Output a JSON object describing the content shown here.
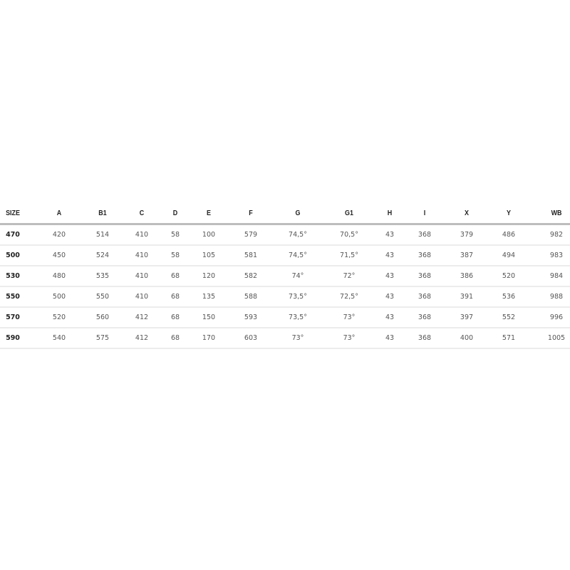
{
  "table": {
    "headers": [
      "SIZE",
      "A",
      "B1",
      "C",
      "D",
      "E",
      "F",
      "G",
      "G1",
      "H",
      "I",
      "X",
      "Y",
      "WB"
    ],
    "rows": [
      [
        "470",
        "420",
        "514",
        "410",
        "58",
        "100",
        "579",
        "74,5°",
        "70,5°",
        "43",
        "368",
        "379",
        "486",
        "982"
      ],
      [
        "500",
        "450",
        "524",
        "410",
        "58",
        "105",
        "581",
        "74,5°",
        "71,5°",
        "43",
        "368",
        "387",
        "494",
        "983"
      ],
      [
        "530",
        "480",
        "535",
        "410",
        "68",
        "120",
        "582",
        "74°",
        "72°",
        "43",
        "368",
        "386",
        "520",
        "984"
      ],
      [
        "550",
        "500",
        "550",
        "410",
        "68",
        "135",
        "588",
        "73,5°",
        "72,5°",
        "43",
        "368",
        "391",
        "536",
        "988"
      ],
      [
        "570",
        "520",
        "560",
        "412",
        "68",
        "150",
        "593",
        "73,5°",
        "73°",
        "43",
        "368",
        "397",
        "552",
        "996"
      ],
      [
        "590",
        "540",
        "575",
        "412",
        "68",
        "170",
        "603",
        "73°",
        "73°",
        "43",
        "368",
        "400",
        "571",
        "1005"
      ]
    ]
  }
}
